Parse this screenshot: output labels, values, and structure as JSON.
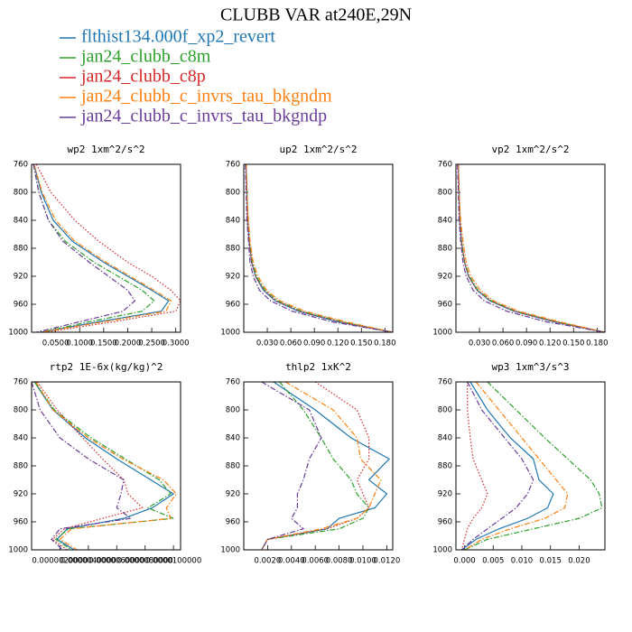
{
  "title": "CLUBB VAR at240E,29N",
  "series": [
    {
      "name": "flthist134.000f_xp2_revert",
      "color": "#1f77b4",
      "style": "solid"
    },
    {
      "name": "jan24_clubb_c8m",
      "color": "#2ca02c",
      "style": "dashdot"
    },
    {
      "name": "jan24_clubb_c8p",
      "color": "#d62728",
      "style": "dotted"
    },
    {
      "name": "jan24_clubb_c_invrs_tau_bkgndm",
      "color": "#ff7f0e",
      "style": "dashdot"
    },
    {
      "name": "jan24_clubb_c_invrs_tau_bkgndp",
      "color": "#6a3d9a",
      "style": "dashdot"
    }
  ],
  "chart_data": [
    {
      "type": "line",
      "title": "wp2   1xm^2/s^2",
      "y": [
        760,
        800,
        840,
        870,
        900,
        920,
        940,
        955,
        970,
        985,
        1000
      ],
      "ylim": [
        1000,
        760
      ],
      "yticks": [
        760,
        800,
        840,
        880,
        920,
        960,
        1000
      ],
      "xlim": [
        0,
        0.31
      ],
      "xticks": [
        {
          "value": 0.05,
          "label": "0.0500"
        },
        {
          "value": 0.1,
          "label": "0.1000"
        },
        {
          "value": 0.15,
          "label": "0.1500"
        },
        {
          "value": 0.2,
          "label": "0.2000"
        },
        {
          "value": 0.25,
          "label": "0.2500"
        },
        {
          "value": 0.3,
          "label": "0.3000"
        }
      ],
      "series": [
        {
          "values": [
            0.005,
            0.02,
            0.045,
            0.085,
            0.15,
            0.2,
            0.25,
            0.285,
            0.27,
            0.14,
            0.02
          ]
        },
        {
          "values": [
            0.004,
            0.015,
            0.035,
            0.07,
            0.13,
            0.18,
            0.23,
            0.255,
            0.23,
            0.12,
            0.02
          ]
        },
        {
          "values": [
            0.01,
            0.04,
            0.09,
            0.14,
            0.2,
            0.25,
            0.29,
            0.31,
            0.3,
            0.17,
            0.03
          ]
        },
        {
          "values": [
            0.005,
            0.022,
            0.05,
            0.09,
            0.155,
            0.205,
            0.255,
            0.29,
            0.28,
            0.15,
            0.02
          ]
        },
        {
          "values": [
            0.004,
            0.015,
            0.035,
            0.065,
            0.12,
            0.16,
            0.2,
            0.215,
            0.19,
            0.1,
            0.01
          ]
        }
      ]
    },
    {
      "type": "line",
      "title": "up2   1xm^2/s^2",
      "y": [
        760,
        800,
        840,
        870,
        900,
        920,
        940,
        955,
        970,
        985,
        1000
      ],
      "ylim": [
        1000,
        760
      ],
      "yticks": [
        760,
        800,
        840,
        880,
        920,
        960,
        1000
      ],
      "xlim": [
        0,
        0.19
      ],
      "xticks": [
        {
          "value": 0.03,
          "label": "0.030"
        },
        {
          "value": 0.06,
          "label": "0.060"
        },
        {
          "value": 0.09,
          "label": "0.090"
        },
        {
          "value": 0.12,
          "label": "0.120"
        },
        {
          "value": 0.15,
          "label": "0.150"
        },
        {
          "value": 0.18,
          "label": "0.180"
        }
      ],
      "series": [
        {
          "values": [
            0.003,
            0.004,
            0.005,
            0.007,
            0.01,
            0.015,
            0.025,
            0.04,
            0.07,
            0.12,
            0.19
          ]
        },
        {
          "values": [
            0.003,
            0.004,
            0.005,
            0.007,
            0.011,
            0.016,
            0.027,
            0.043,
            0.074,
            0.125,
            0.19
          ]
        },
        {
          "values": [
            0.003,
            0.004,
            0.005,
            0.007,
            0.01,
            0.015,
            0.026,
            0.041,
            0.072,
            0.122,
            0.19
          ]
        },
        {
          "values": [
            0.003,
            0.004,
            0.006,
            0.008,
            0.012,
            0.018,
            0.029,
            0.046,
            0.078,
            0.13,
            0.19
          ]
        },
        {
          "values": [
            0.002,
            0.003,
            0.004,
            0.006,
            0.008,
            0.012,
            0.02,
            0.034,
            0.062,
            0.112,
            0.19
          ]
        }
      ]
    },
    {
      "type": "line",
      "title": "vp2   1xm^2/s^2",
      "y": [
        760,
        800,
        840,
        870,
        900,
        920,
        940,
        955,
        970,
        985,
        1000
      ],
      "ylim": [
        1000,
        760
      ],
      "yticks": [
        760,
        800,
        840,
        880,
        920,
        960,
        1000
      ],
      "xlim": [
        0,
        0.19
      ],
      "xticks": [
        {
          "value": 0.03,
          "label": "0.030"
        },
        {
          "value": 0.06,
          "label": "0.060"
        },
        {
          "value": 0.09,
          "label": "0.090"
        },
        {
          "value": 0.12,
          "label": "0.120"
        },
        {
          "value": 0.15,
          "label": "0.150"
        },
        {
          "value": 0.18,
          "label": "0.180"
        }
      ],
      "series": [
        {
          "values": [
            0.003,
            0.004,
            0.005,
            0.007,
            0.011,
            0.016,
            0.027,
            0.043,
            0.074,
            0.125,
            0.19
          ]
        },
        {
          "values": [
            0.003,
            0.004,
            0.005,
            0.007,
            0.011,
            0.017,
            0.028,
            0.045,
            0.076,
            0.128,
            0.19
          ]
        },
        {
          "values": [
            0.003,
            0.004,
            0.005,
            0.007,
            0.011,
            0.016,
            0.027,
            0.044,
            0.075,
            0.126,
            0.19
          ]
        },
        {
          "values": [
            0.003,
            0.004,
            0.006,
            0.009,
            0.013,
            0.019,
            0.031,
            0.048,
            0.08,
            0.132,
            0.19
          ]
        },
        {
          "values": [
            0.002,
            0.003,
            0.004,
            0.006,
            0.009,
            0.013,
            0.022,
            0.036,
            0.065,
            0.115,
            0.19
          ]
        }
      ]
    },
    {
      "type": "line",
      "title": "rtp2   1E-6x(kg/kg)^2",
      "y": [
        760,
        800,
        840,
        870,
        900,
        920,
        940,
        955,
        970,
        985,
        1000
      ],
      "ylim": [
        1000,
        760
      ],
      "yticks": [
        760,
        800,
        840,
        880,
        920,
        960,
        1000
      ],
      "xlim": [
        0,
        1.05e-05
      ],
      "xticks": [
        {
          "value": 2e-06,
          "label": "0.0000020000"
        },
        {
          "value": 4e-06,
          "label": "0.0000040000"
        },
        {
          "value": 6e-06,
          "label": "0.0000060000"
        },
        {
          "value": 8e-06,
          "label": "0.0000080000"
        },
        {
          "value": 1e-05,
          "label": "0.0000100000"
        }
      ],
      "series": [
        {
          "values": [
            2e-07,
            1.5e-06,
            3.8e-06,
            6e-06,
            8.4e-06,
            1e-05,
            8.5e-06,
            6.5e-06,
            2.5e-06,
            1.8e-06,
            3e-06
          ]
        },
        {
          "values": [
            2e-07,
            1.6e-06,
            4.2e-06,
            6.6e-06,
            9e-06,
            9.8e-06,
            8.2e-06,
            1e-05,
            2.6e-06,
            1.7e-06,
            2.8e-06
          ]
        },
        {
          "values": [
            4e-07,
            1.8e-06,
            3.6e-06,
            5e-06,
            6.5e-06,
            6.8e-06,
            7.8e-06,
            5e-06,
            2.3e-06,
            1.5e-06,
            2.5e-06
          ]
        },
        {
          "values": [
            3e-07,
            1.5e-06,
            4e-06,
            6.4e-06,
            9.3e-06,
            1.02e-05,
            9.5e-06,
            9.8e-06,
            2.8e-06,
            2e-06,
            3.2e-06
          ]
        },
        {
          "values": [
            0,
            6e-07,
            2e-06,
            4e-06,
            6.5e-06,
            6.3e-06,
            6e-06,
            7e-06,
            2e-06,
            1.4e-06,
            2.2e-06
          ]
        }
      ]
    },
    {
      "type": "line",
      "title": "thlp2   1xK^2",
      "y": [
        760,
        800,
        840,
        870,
        900,
        920,
        940,
        955,
        970,
        985,
        1000
      ],
      "ylim": [
        1000,
        760
      ],
      "yticks": [
        760,
        800,
        840,
        880,
        920,
        960,
        1000
      ],
      "xlim": [
        0,
        0.0125
      ],
      "xticks": [
        {
          "value": 0.002,
          "label": "0.0020"
        },
        {
          "value": 0.004,
          "label": "0.0040"
        },
        {
          "value": 0.006,
          "label": "0.0060"
        },
        {
          "value": 0.008,
          "label": "0.0080"
        },
        {
          "value": 0.01,
          "label": "0.0100"
        },
        {
          "value": 0.012,
          "label": "0.0120"
        }
      ],
      "series": [
        {
          "values": [
            0.0025,
            0.006,
            0.009,
            0.0122,
            0.0105,
            0.012,
            0.011,
            0.008,
            0.007,
            0.002,
            0.0015
          ]
        },
        {
          "values": [
            0.003,
            0.005,
            0.0065,
            0.0075,
            0.009,
            0.0095,
            0.0105,
            0.01,
            0.008,
            0.002,
            0.0015
          ]
        },
        {
          "values": [
            0.006,
            0.0095,
            0.0105,
            0.0105,
            0.0095,
            0.01,
            0.0105,
            0.0095,
            0.007,
            0.002,
            0.0015
          ]
        },
        {
          "values": [
            0.0035,
            0.0075,
            0.0095,
            0.0098,
            0.0115,
            0.011,
            0.0105,
            0.0095,
            0.0065,
            0.002,
            0.0015
          ]
        },
        {
          "values": [
            0.0015,
            0.0055,
            0.0065,
            0.0055,
            0.005,
            0.0045,
            0.0045,
            0.004,
            0.005,
            0.002,
            0.0015
          ]
        }
      ]
    },
    {
      "type": "line",
      "title": "wp3   1xm^3/s^3",
      "y": [
        760,
        800,
        840,
        870,
        900,
        920,
        940,
        955,
        970,
        985,
        1000
      ],
      "ylim": [
        1000,
        760
      ],
      "yticks": [
        760,
        800,
        840,
        880,
        920,
        960,
        1000
      ],
      "xlim": [
        -0.0015,
        0.0245
      ],
      "xticks": [
        {
          "value": 0,
          "label": "0.000"
        },
        {
          "value": 0.005,
          "label": "0.005"
        },
        {
          "value": 0.01,
          "label": "0.010"
        },
        {
          "value": 0.015,
          "label": "0.015"
        },
        {
          "value": 0.02,
          "label": "0.020"
        }
      ],
      "series": [
        {
          "values": [
            0.001,
            0.004,
            0.008,
            0.012,
            0.013,
            0.0155,
            0.0145,
            0.011,
            0.006,
            0.002,
            -0.0005
          ]
        },
        {
          "values": [
            0.004,
            0.009,
            0.014,
            0.018,
            0.022,
            0.0235,
            0.024,
            0.02,
            0.012,
            0.004,
            0
          ]
        },
        {
          "values": [
            0.0005,
            0.0005,
            0.001,
            0.0015,
            0.003,
            0.004,
            0.003,
            0.0015,
            0.0005,
            0,
            -0.0005
          ]
        },
        {
          "values": [
            0.002,
            0.006,
            0.01,
            0.013,
            0.016,
            0.018,
            0.0175,
            0.014,
            0.008,
            0.003,
            0
          ]
        },
        {
          "values": [
            0.0005,
            0.003,
            0.007,
            0.01,
            0.012,
            0.011,
            0.009,
            0.0065,
            0.004,
            0.0015,
            -0.0005
          ]
        }
      ]
    }
  ]
}
